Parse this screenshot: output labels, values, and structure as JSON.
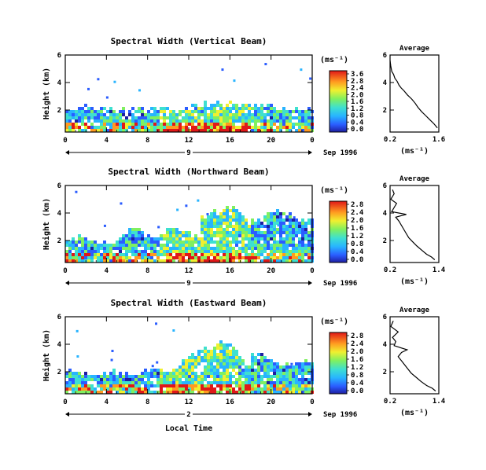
{
  "figure": {
    "xlabel": "Local Time",
    "date_label": "Sep 1996",
    "unit_label": "(ms⁻¹)"
  },
  "chart_data": [
    {
      "type": "heatmap",
      "title": "Spectral Width (Vertical Beam)",
      "ylabel": "Height (km)",
      "xlabel": "Local Time",
      "x_ticks": [
        "0",
        "4",
        "8",
        "12",
        "16",
        "20",
        "0"
      ],
      "y_ticks": [
        "2",
        "4",
        "6"
      ],
      "xlim": [
        0,
        24
      ],
      "ylim": [
        0.4,
        6
      ],
      "day_marker": "9",
      "colorbar": {
        "label": "(ms⁻¹)",
        "ticks": [
          "0.0",
          "0.4",
          "0.8",
          "1.2",
          "1.6",
          "2.0",
          "2.4",
          "2.8",
          "3.6"
        ],
        "range": [
          0,
          3.6
        ]
      },
      "profile": {
        "title": "Average",
        "xlabel": "(ms⁻¹)",
        "x_ticks": [
          "0.2",
          "1.6"
        ],
        "y_ticks": [
          "2",
          "4",
          "6"
        ],
        "xlim": [
          0.2,
          1.6
        ],
        "ylim": [
          0.4,
          6
        ],
        "x": [
          0.2,
          0.22,
          0.25,
          0.3,
          0.34,
          0.4,
          0.46,
          0.52,
          0.6,
          0.7,
          0.82,
          0.92,
          1.0,
          1.1,
          1.22,
          1.34,
          1.46,
          1.56
        ],
        "y": [
          5.6,
          5.2,
          4.8,
          4.6,
          4.3,
          4.1,
          3.8,
          3.6,
          3.4,
          3.1,
          2.8,
          2.5,
          2.2,
          1.9,
          1.6,
          1.3,
          1.0,
          0.7
        ]
      }
    },
    {
      "type": "heatmap",
      "title": "Spectral Width (Northward Beam)",
      "ylabel": "Height (km)",
      "xlabel": "Local Time",
      "x_ticks": [
        "0",
        "4",
        "8",
        "12",
        "16",
        "20",
        "0"
      ],
      "y_ticks": [
        "2",
        "4",
        "6"
      ],
      "xlim": [
        0,
        24
      ],
      "ylim": [
        0.4,
        6
      ],
      "day_marker": "9",
      "colorbar": {
        "label": "(ms⁻¹)",
        "ticks": [
          "0.0",
          "0.4",
          "0.8",
          "1.2",
          "1.6",
          "2.0",
          "2.4",
          "2.8"
        ],
        "range": [
          0,
          2.8
        ]
      },
      "profile": {
        "title": "Average",
        "xlabel": "(ms⁻¹)",
        "x_ticks": [
          "0.2",
          "1.4"
        ],
        "y_ticks": [
          "2",
          "4",
          "6"
        ],
        "xlim": [
          0.2,
          1.4
        ],
        "ylim": [
          0.4,
          6
        ],
        "x": [
          0.26,
          0.3,
          0.22,
          0.36,
          0.3,
          0.24,
          0.6,
          0.34,
          0.42,
          0.5,
          0.58,
          0.66,
          0.76,
          0.86,
          0.98,
          1.1,
          1.22,
          1.3
        ],
        "y": [
          5.7,
          5.4,
          5.0,
          4.7,
          4.4,
          4.1,
          3.9,
          3.7,
          3.4,
          3.0,
          2.6,
          2.2,
          1.9,
          1.6,
          1.3,
          1.0,
          0.8,
          0.6
        ]
      }
    },
    {
      "type": "heatmap",
      "title": "Spectral Width (Eastward Beam)",
      "ylabel": "Height (km)",
      "xlabel": "Local Time",
      "x_ticks": [
        "0",
        "4",
        "8",
        "12",
        "16",
        "20",
        "0"
      ],
      "y_ticks": [
        "2",
        "4",
        "6"
      ],
      "xlim": [
        0,
        24
      ],
      "ylim": [
        0.4,
        6
      ],
      "day_marker": "2",
      "colorbar": {
        "label": "(ms⁻¹)",
        "ticks": [
          "0.0",
          "0.4",
          "0.8",
          "1.2",
          "1.6",
          "2.0",
          "2.4",
          "2.8"
        ],
        "range": [
          0,
          2.8
        ]
      },
      "profile": {
        "title": "Average",
        "xlabel": "(ms⁻¹)",
        "x_ticks": [
          "0.2",
          "1.4"
        ],
        "y_ticks": [
          "2",
          "4",
          "6"
        ],
        "xlim": [
          0.2,
          1.4
        ],
        "ylim": [
          0.4,
          6
        ],
        "x": [
          0.28,
          0.22,
          0.4,
          0.26,
          0.34,
          0.3,
          0.62,
          0.48,
          0.4,
          0.48,
          0.56,
          0.64,
          0.72,
          0.84,
          0.96,
          1.1,
          1.24,
          1.32
        ],
        "y": [
          5.7,
          5.3,
          4.9,
          4.5,
          4.2,
          3.9,
          3.6,
          3.4,
          3.1,
          2.8,
          2.5,
          2.2,
          1.9,
          1.6,
          1.3,
          1.0,
          0.8,
          0.6
        ]
      }
    }
  ]
}
